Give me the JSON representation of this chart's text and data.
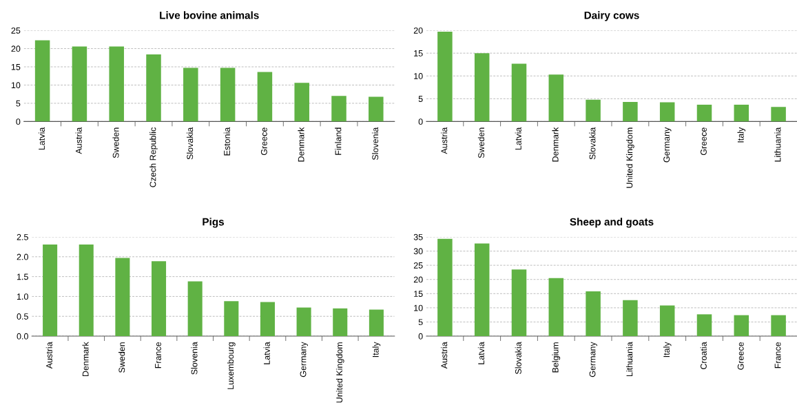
{
  "chart_data": [
    {
      "type": "bar",
      "title": "Live bovine animals",
      "categories": [
        "Latvia",
        "Austria",
        "Sweden",
        "Czech Republic",
        "Slovakia",
        "Estonia",
        "Greece",
        "Denmark",
        "Finland",
        "Slovenia"
      ],
      "values": [
        22.3,
        20.6,
        20.6,
        18.4,
        14.7,
        14.7,
        13.6,
        10.6,
        7.0,
        6.8
      ],
      "color": "#60b244",
      "ylim": [
        0,
        25
      ],
      "yticks": [
        0,
        5,
        10,
        15,
        20,
        25
      ],
      "grid": "y"
    },
    {
      "type": "bar",
      "title": "Dairy cows",
      "categories": [
        "Austria",
        "Sweden",
        "Latvia",
        "Denmark",
        "Slovakia",
        "United Kingdom",
        "Germany",
        "Greece",
        "Italy",
        "Lithuania"
      ],
      "values": [
        19.7,
        15.0,
        12.7,
        10.3,
        4.8,
        4.3,
        4.2,
        3.7,
        3.7,
        3.2
      ],
      "color": "#60b244",
      "ylim": [
        0,
        20
      ],
      "yticks": [
        0,
        5,
        10,
        15,
        20
      ],
      "grid": "y"
    },
    {
      "type": "bar",
      "title": "Pigs",
      "categories": [
        "Austria",
        "Denmark",
        "Sweden",
        "France",
        "Slovenia",
        "Luxembourg",
        "Latvia",
        "Germany",
        "United Kingdom",
        "Italy"
      ],
      "values": [
        2.31,
        2.31,
        1.97,
        1.89,
        1.38,
        0.88,
        0.86,
        0.72,
        0.7,
        0.67
      ],
      "color": "#60b244",
      "ylim": [
        0,
        2.5
      ],
      "yticks": [
        {
          "value": 0,
          "label": "0.0"
        },
        {
          "value": 0.5,
          "label": "0.5"
        },
        {
          "value": 1,
          "label": "1.0"
        },
        {
          "value": 1.5,
          "label": "1.5"
        },
        {
          "value": 2,
          "label": "2.0"
        },
        {
          "value": 2.5,
          "label": "2.5"
        }
      ],
      "grid": "y"
    },
    {
      "type": "bar",
      "title": "Sheep and goats",
      "categories": [
        "Austria",
        "Latvia",
        "Slovakia",
        "Belgium",
        "Germany",
        "Lithuania",
        "Italy",
        "Croatia",
        "Greece",
        "France"
      ],
      "values": [
        34.3,
        32.7,
        23.5,
        20.5,
        15.8,
        12.7,
        10.8,
        7.7,
        7.4,
        7.4
      ],
      "color": "#60b244",
      "ylim": [
        0,
        35
      ],
      "yticks": [
        0,
        5,
        10,
        15,
        20,
        25,
        30,
        35
      ],
      "grid": "y"
    }
  ]
}
